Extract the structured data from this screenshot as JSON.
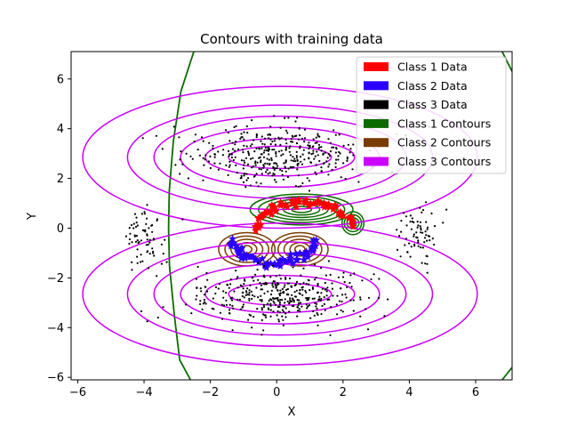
{
  "chart_data": {
    "type": "scatter",
    "title": "Contours with training data",
    "xlabel": "X",
    "ylabel": "Y",
    "xlim": [
      -6.2,
      7.1
    ],
    "ylim": [
      -6.1,
      7.1
    ],
    "x_ticks": [
      -6,
      -4,
      -2,
      0,
      2,
      4,
      6
    ],
    "y_ticks": [
      -6,
      -4,
      -2,
      0,
      2,
      4,
      6
    ],
    "grid": false,
    "legend_position": "top-right",
    "legend": [
      {
        "label": "Class 1 Data",
        "color": "#ff0000"
      },
      {
        "label": "Class 2 Data",
        "color": "#2a00ff"
      },
      {
        "label": "Class 3 Data",
        "color": "#000000"
      },
      {
        "label": "Class 1 Contours",
        "color": "#0b6b00"
      },
      {
        "label": "Class 2 Contours",
        "color": "#7a3b00"
      },
      {
        "label": "Class 3 Contours",
        "color": "#cc00ff"
      }
    ],
    "series": [
      {
        "name": "Class 1 Data",
        "kind": "points",
        "color": "#ff0000",
        "marker": "star",
        "arc": {
          "center": [
            0.85,
            0.0
          ],
          "rx": 1.45,
          "ry": 1.05,
          "theta_deg": [
            8,
            178
          ],
          "count": 70,
          "spread": 0.08
        }
      },
      {
        "name": "Class 2 Data",
        "kind": "points",
        "color": "#2a00ff",
        "marker": "star",
        "arc": {
          "center": [
            -0.1,
            -0.45
          ],
          "rx": 1.25,
          "ry": 0.95,
          "theta_deg": [
            185,
            355
          ],
          "count": 70,
          "spread": 0.08
        }
      },
      {
        "name": "Class 3 Data",
        "kind": "points",
        "color": "#000000",
        "marker": "dot",
        "clusters": [
          {
            "center": [
              0.0,
              2.9
            ],
            "sx": 2.2,
            "sy": 1.05,
            "count": 380
          },
          {
            "center": [
              0.0,
              -2.7
            ],
            "sx": 2.2,
            "sy": 1.05,
            "count": 380
          },
          {
            "center": [
              -4.0,
              -0.4
            ],
            "sx": 0.6,
            "sy": 1.1,
            "count": 70
          },
          {
            "center": [
              4.3,
              -0.4
            ],
            "sx": 0.6,
            "sy": 1.1,
            "count": 70
          }
        ]
      },
      {
        "name": "Class 1 Contours",
        "kind": "contours",
        "color": "#0b6b00",
        "ellipses": [
          {
            "center": [
              0.75,
              0.75
            ],
            "r": [
              [
                0.3,
                0.12
              ],
              [
                0.55,
                0.22
              ],
              [
                0.8,
                0.32
              ],
              [
                1.05,
                0.42
              ],
              [
                1.3,
                0.52
              ],
              [
                1.55,
                0.62
              ]
            ]
          },
          {
            "center": [
              2.3,
              0.2
            ],
            "r": [
              [
                0.1,
                0.12
              ],
              [
                0.18,
                0.22
              ],
              [
                0.26,
                0.34
              ],
              [
                0.33,
                0.46
              ]
            ]
          }
        ],
        "outer_boundary": {
          "left_points": [
            [
              -2.5,
              7.1
            ],
            [
              -2.9,
              5.5
            ],
            [
              -3.1,
              3.5
            ],
            [
              -3.25,
              1.5
            ],
            [
              -3.3,
              0.0
            ],
            [
              -3.25,
              -1.5
            ],
            [
              -3.1,
              -3.5
            ],
            [
              -2.9,
              -5.3
            ],
            [
              -2.6,
              -6.1
            ]
          ],
          "right_points_top": [
            [
              6.8,
              7.1
            ],
            [
              7.1,
              6.3
            ]
          ],
          "right_points_bottom": [
            [
              7.1,
              -5.6
            ],
            [
              6.8,
              -6.1
            ]
          ]
        }
      },
      {
        "name": "Class 2 Contours",
        "kind": "contours",
        "color": "#7a3b00",
        "ellipses": [
          {
            "center": [
              -0.9,
              -0.85
            ],
            "r": [
              [
                0.15,
                0.15
              ],
              [
                0.3,
                0.27
              ],
              [
                0.48,
                0.4
              ],
              [
                0.66,
                0.53
              ],
              [
                0.85,
                0.67
              ]
            ]
          },
          {
            "center": [
              0.7,
              -0.85
            ],
            "r": [
              [
                0.15,
                0.15
              ],
              [
                0.3,
                0.27
              ],
              [
                0.48,
                0.4
              ],
              [
                0.66,
                0.53
              ],
              [
                0.85,
                0.67
              ]
            ]
          }
        ]
      },
      {
        "name": "Class 3 Contours",
        "kind": "contours",
        "color": "#cc00ff",
        "ellipses": [
          {
            "center": [
              0.1,
              2.85
            ],
            "r": [
              [
                1.55,
                0.45
              ],
              [
                2.25,
                0.75
              ],
              [
                3.0,
                1.2
              ],
              [
                3.8,
                1.65
              ],
              [
                4.6,
                2.1
              ],
              [
                5.95,
                2.85
              ]
            ]
          },
          {
            "center": [
              0.1,
              -2.65
            ],
            "r": [
              [
                1.55,
                0.45
              ],
              [
                2.25,
                0.75
              ],
              [
                3.0,
                1.2
              ],
              [
                3.8,
                1.65
              ],
              [
                4.6,
                2.1
              ],
              [
                5.95,
                2.85
              ]
            ]
          }
        ]
      }
    ]
  }
}
